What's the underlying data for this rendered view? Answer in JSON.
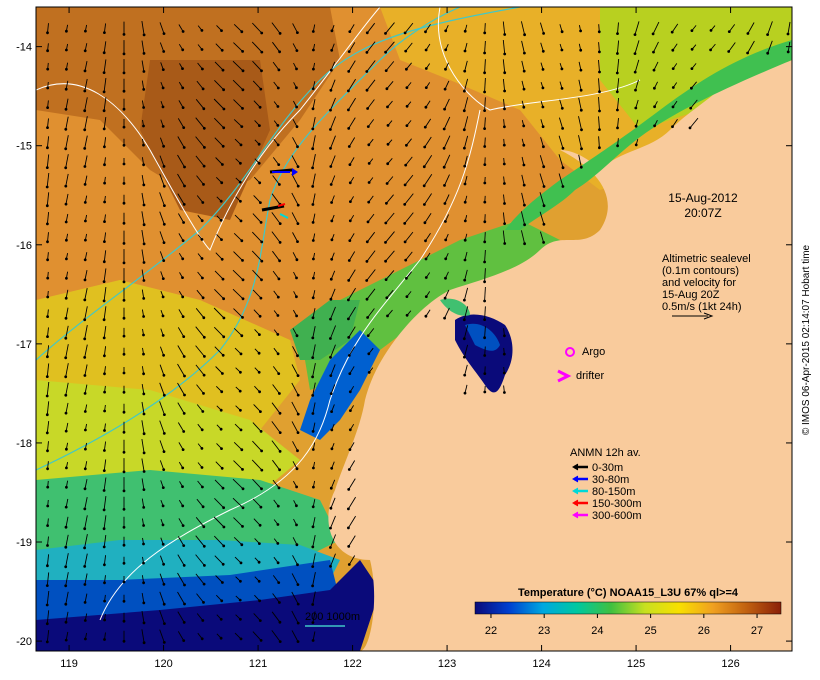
{
  "map": {
    "lon_ticks": [
      "119",
      "120",
      "121",
      "122",
      "123",
      "124",
      "125",
      "126"
    ],
    "lat_ticks": [
      "-14",
      "-15",
      "-16",
      "-17",
      "-18",
      "-19",
      "-20"
    ],
    "lon_range": [
      118.65,
      126.65
    ],
    "lat_range": [
      -13.6,
      -20.1
    ],
    "land_color": "#f9cb9c",
    "contour_color": "#ffffff",
    "isobath_color": "#40c8c8"
  },
  "annotations": {
    "date": "15-Aug-2012",
    "time": "20:07Z",
    "altimetry_lines": [
      "Altimetric sealevel",
      "(0.1m contours)",
      "and velocity for",
      "15-Aug 20Z",
      "0.5m/s (1kt 24h)"
    ],
    "argo_label": "Argo",
    "drifter_label": "drifter",
    "scale_label": "200  1000m",
    "credit": "© IMOS 06-Apr-2015 02:14:07 Hobart time"
  },
  "legend": {
    "title": "ANMN 12h av.",
    "items": [
      {
        "label": "0-30m",
        "color": "#000000"
      },
      {
        "label": "30-80m",
        "color": "#0000ff"
      },
      {
        "label": "80-150m",
        "color": "#00d8d8"
      },
      {
        "label": "150-300m",
        "color": "#ff0000"
      },
      {
        "label": "300-600m",
        "color": "#ff00ff"
      }
    ]
  },
  "colorbar": {
    "title": "Temperature (°C) NOAA15_L3U 67% ql>=4",
    "ticks": [
      "22",
      "23",
      "24",
      "25",
      "26",
      "27"
    ],
    "stops": [
      "#0a0a7a",
      "#0040d0",
      "#00a8e0",
      "#00c8a0",
      "#40c040",
      "#c8e020",
      "#f8e000",
      "#f0a020",
      "#c06010",
      "#8a2008"
    ]
  }
}
